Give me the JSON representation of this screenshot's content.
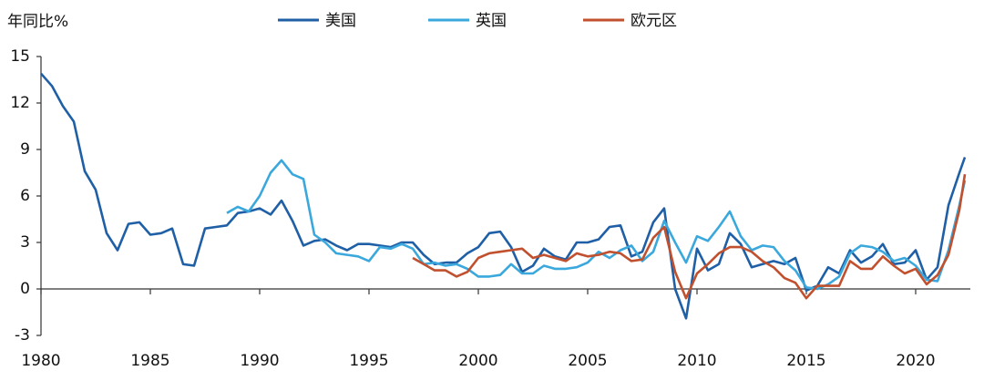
{
  "chart_data": {
    "type": "line",
    "y_label": "年同比%",
    "x": [
      1980,
      1980.5,
      1981,
      1981.5,
      1982,
      1982.5,
      1983,
      1983.5,
      1984,
      1984.5,
      1985,
      1985.5,
      1986,
      1986.5,
      1987,
      1987.5,
      1988,
      1988.5,
      1989,
      1989.5,
      1990,
      1990.5,
      1991,
      1991.5,
      1992,
      1992.5,
      1993,
      1993.5,
      1994,
      1994.5,
      1995,
      1995.5,
      1996,
      1996.5,
      1997,
      1997.5,
      1998,
      1998.5,
      1999,
      1999.5,
      2000,
      2000.5,
      2001,
      2001.5,
      2002,
      2002.5,
      2003,
      2003.5,
      2004,
      2004.5,
      2005,
      2005.5,
      2006,
      2006.5,
      2007,
      2007.5,
      2008,
      2008.5,
      2009,
      2009.5,
      2010,
      2010.5,
      2011,
      2011.5,
      2012,
      2012.5,
      2013,
      2013.5,
      2014,
      2014.5,
      2015,
      2015.5,
      2016,
      2016.5,
      2017,
      2017.5,
      2018,
      2018.5,
      2019,
      2019.5,
      2020,
      2020.5,
      2021,
      2021.5,
      2022,
      2022.25
    ],
    "series": [
      {
        "name": "美国",
        "color": "#1f5fa6",
        "values": [
          13.9,
          13.1,
          11.8,
          10.8,
          7.6,
          6.4,
          3.6,
          2.5,
          4.2,
          4.3,
          3.5,
          3.6,
          3.9,
          1.6,
          1.5,
          3.9,
          4.0,
          4.1,
          4.9,
          5.0,
          5.2,
          4.8,
          5.7,
          4.4,
          2.8,
          3.1,
          3.2,
          2.8,
          2.5,
          2.9,
          2.9,
          2.8,
          2.7,
          3.0,
          3.0,
          2.2,
          1.6,
          1.7,
          1.7,
          2.3,
          2.7,
          3.6,
          3.7,
          2.7,
          1.1,
          1.5,
          2.6,
          2.1,
          1.9,
          3.0,
          3.0,
          3.2,
          4.0,
          4.1,
          2.1,
          2.4,
          4.3,
          5.2,
          0.0,
          -1.9,
          2.6,
          1.2,
          1.6,
          3.6,
          2.9,
          1.4,
          1.6,
          1.8,
          1.6,
          2.0,
          -0.1,
          0.2,
          1.4,
          1.0,
          2.5,
          1.7,
          2.1,
          2.9,
          1.6,
          1.7,
          2.5,
          0.6,
          1.4,
          5.4,
          7.5,
          8.5
        ]
      },
      {
        "name": "英国",
        "color": "#3aa8dc",
        "values": [
          null,
          null,
          null,
          null,
          null,
          null,
          null,
          null,
          null,
          null,
          null,
          null,
          null,
          null,
          null,
          null,
          null,
          4.9,
          5.3,
          5.0,
          6.0,
          7.5,
          8.3,
          7.4,
          7.1,
          3.5,
          3.0,
          2.3,
          2.2,
          2.1,
          1.8,
          2.7,
          2.6,
          2.9,
          2.6,
          1.6,
          1.7,
          1.5,
          1.6,
          1.3,
          0.8,
          0.8,
          0.9,
          1.6,
          1.0,
          1.0,
          1.5,
          1.3,
          1.3,
          1.4,
          1.7,
          2.4,
          2.0,
          2.5,
          2.8,
          1.8,
          2.4,
          4.4,
          3.0,
          1.7,
          3.4,
          3.1,
          4.0,
          5.0,
          3.4,
          2.5,
          2.8,
          2.7,
          1.8,
          1.2,
          0.1,
          0.0,
          0.3,
          0.8,
          2.3,
          2.8,
          2.7,
          2.4,
          1.8,
          2.0,
          1.5,
          0.6,
          0.5,
          2.5,
          5.4,
          7.0
        ]
      },
      {
        "name": "欧元区",
        "color": "#c0502e",
        "values": [
          null,
          null,
          null,
          null,
          null,
          null,
          null,
          null,
          null,
          null,
          null,
          null,
          null,
          null,
          null,
          null,
          null,
          null,
          null,
          null,
          null,
          null,
          null,
          null,
          null,
          null,
          null,
          null,
          null,
          null,
          null,
          null,
          null,
          null,
          2.0,
          1.6,
          1.2,
          1.2,
          0.8,
          1.1,
          2.0,
          2.3,
          2.4,
          2.5,
          2.6,
          2.0,
          2.2,
          2.0,
          1.8,
          2.3,
          2.1,
          2.2,
          2.4,
          2.3,
          1.8,
          1.9,
          3.3,
          4.0,
          1.1,
          -0.6,
          1.0,
          1.6,
          2.3,
          2.7,
          2.7,
          2.4,
          1.8,
          1.4,
          0.7,
          0.4,
          -0.6,
          0.2,
          0.2,
          0.2,
          1.8,
          1.3,
          1.3,
          2.1,
          1.5,
          1.0,
          1.3,
          0.3,
          0.9,
          2.2,
          5.1,
          7.4
        ]
      }
    ],
    "xlim": [
      1980,
      2022.5
    ],
    "xticks": [
      1980,
      1985,
      1990,
      1995,
      2000,
      2005,
      2010,
      2015,
      2020
    ],
    "ylim": [
      -3,
      15
    ],
    "yticks": [
      -3,
      0,
      3,
      6,
      9,
      12,
      15
    ],
    "grid": false,
    "legend": "top"
  }
}
